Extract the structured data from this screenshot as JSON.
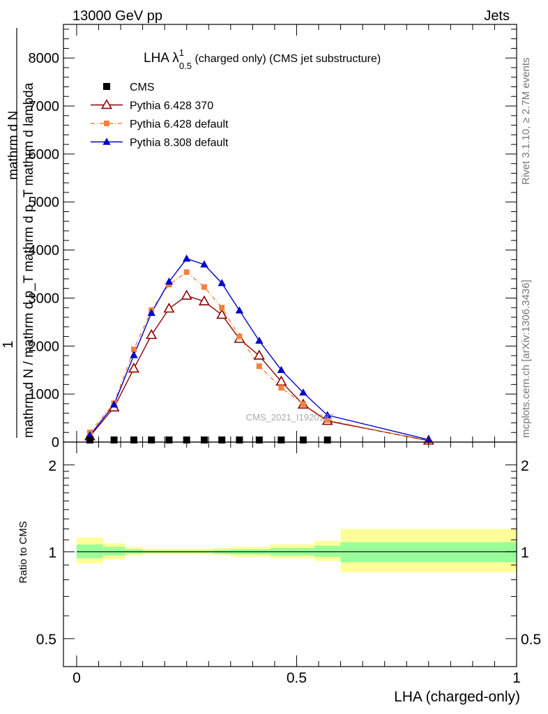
{
  "header": {
    "left": "13000 GeV pp",
    "right": "Jets"
  },
  "side_labels": {
    "rivet": "Rivet 3.1.10, ≥ 2.7M events",
    "mcplots": "mcplots.cern.ch [arXiv:1306.3436]"
  },
  "title": {
    "main": "LHA λ",
    "sup": "1",
    "sub": "0.5",
    "rest": " (charged only) (CMS jet substructure)"
  },
  "watermark": "CMS_2021_I1920187",
  "colors": {
    "cms": "#000000",
    "p6_370": "#8b0000",
    "p6_default": "#f4803a",
    "p8_default": "#0000cc",
    "band_inner": "#99ff99",
    "band_outer": "#ffff99"
  },
  "chart_data": [
    {
      "type": "line",
      "panel": "main",
      "xlabel": "LHA (charged-only)",
      "ylabel_top": "1",
      "ylabel_numerator": "mathrm d N",
      "ylabel_denominator": "mathrm d N / mathrm d p_T mathrm d p_T mathrm d lambda",
      "xlim": [
        -0.03,
        1.0
      ],
      "ylim": [
        0,
        8700
      ],
      "y_ticks": [
        0,
        1000,
        2000,
        3000,
        4000,
        5000,
        6000,
        7000,
        8000
      ],
      "y_tick_labels": [
        "0",
        "1000",
        "2000",
        "3000",
        "4000",
        "5000",
        "6000",
        "7000",
        "8000"
      ],
      "legend_position": "top-left",
      "series": [
        {
          "name": "CMS",
          "style": "square",
          "x": [
            0.03,
            0.085,
            0.13,
            0.17,
            0.21,
            0.25,
            0.29,
            0.33,
            0.37,
            0.415,
            0.465,
            0.515,
            0.57
          ],
          "y": [
            5,
            5,
            5,
            5,
            5,
            5,
            5,
            5,
            5,
            5,
            5,
            5,
            5
          ]
        },
        {
          "name": "Pythia 6.428 370",
          "style": "open-triangle",
          "x": [
            0.03,
            0.085,
            0.13,
            0.17,
            0.21,
            0.25,
            0.29,
            0.33,
            0.37,
            0.415,
            0.465,
            0.515,
            0.57,
            0.8
          ],
          "y": [
            120,
            720,
            1530,
            2230,
            2780,
            3050,
            2930,
            2650,
            2150,
            1800,
            1260,
            780,
            440,
            30
          ]
        },
        {
          "name": "Pythia 6.428 default",
          "style": "small-square-dashdot",
          "x": [
            0.03,
            0.085,
            0.13,
            0.17,
            0.21,
            0.25,
            0.29,
            0.33,
            0.37,
            0.415,
            0.465,
            0.515,
            0.57,
            0.8
          ],
          "y": [
            200,
            810,
            1930,
            2750,
            3280,
            3540,
            3230,
            2800,
            2200,
            1580,
            1130,
            790,
            460,
            20
          ]
        },
        {
          "name": "Pythia 8.308 default",
          "style": "filled-triangle",
          "x": [
            0.03,
            0.085,
            0.13,
            0.17,
            0.21,
            0.25,
            0.29,
            0.33,
            0.37,
            0.415,
            0.465,
            0.515,
            0.57,
            0.8
          ],
          "y": [
            140,
            780,
            1810,
            2690,
            3340,
            3820,
            3700,
            3310,
            2740,
            2110,
            1500,
            1030,
            560,
            50
          ]
        }
      ]
    },
    {
      "type": "line",
      "panel": "ratio",
      "xlabel": "LHA (charged-only)",
      "ylabel": "Ratio to CMS",
      "xlim": [
        -0.03,
        1.0
      ],
      "ylim": [
        0.4,
        2.4
      ],
      "y_scale": "log",
      "x_ticks": [
        0,
        0.5,
        1
      ],
      "x_tick_labels": [
        "0",
        "0.5",
        "1"
      ],
      "y_ticks": [
        0.5,
        1,
        2
      ],
      "y_tick_labels": [
        "0.5",
        "1",
        "2"
      ],
      "reference_line": 1,
      "bands": [
        {
          "x0": 0.0,
          "x1": 0.06,
          "inner": [
            0.95,
            1.06
          ],
          "outer": [
            0.91,
            1.12
          ]
        },
        {
          "x0": 0.06,
          "x1": 0.11,
          "inner": [
            0.97,
            1.04
          ],
          "outer": [
            0.94,
            1.07
          ]
        },
        {
          "x0": 0.11,
          "x1": 0.15,
          "inner": [
            0.985,
            1.02
          ],
          "outer": [
            0.97,
            1.04
          ]
        },
        {
          "x0": 0.15,
          "x1": 0.19,
          "inner": [
            0.99,
            1.01
          ],
          "outer": [
            0.98,
            1.025
          ]
        },
        {
          "x0": 0.19,
          "x1": 0.23,
          "inner": [
            0.99,
            1.01
          ],
          "outer": [
            0.98,
            1.025
          ]
        },
        {
          "x0": 0.23,
          "x1": 0.27,
          "inner": [
            0.99,
            1.01
          ],
          "outer": [
            0.98,
            1.025
          ]
        },
        {
          "x0": 0.27,
          "x1": 0.31,
          "inner": [
            0.99,
            1.01
          ],
          "outer": [
            0.98,
            1.025
          ]
        },
        {
          "x0": 0.31,
          "x1": 0.35,
          "inner": [
            0.985,
            1.015
          ],
          "outer": [
            0.975,
            1.03
          ]
        },
        {
          "x0": 0.35,
          "x1": 0.39,
          "inner": [
            0.98,
            1.02
          ],
          "outer": [
            0.96,
            1.04
          ]
        },
        {
          "x0": 0.39,
          "x1": 0.44,
          "inner": [
            0.98,
            1.02
          ],
          "outer": [
            0.96,
            1.04
          ]
        },
        {
          "x0": 0.44,
          "x1": 0.49,
          "inner": [
            0.97,
            1.03
          ],
          "outer": [
            0.95,
            1.06
          ]
        },
        {
          "x0": 0.49,
          "x1": 0.54,
          "inner": [
            0.97,
            1.03
          ],
          "outer": [
            0.95,
            1.06
          ]
        },
        {
          "x0": 0.54,
          "x1": 0.6,
          "inner": [
            0.96,
            1.05
          ],
          "outer": [
            0.93,
            1.09
          ]
        },
        {
          "x0": 0.6,
          "x1": 1.0,
          "inner": [
            0.92,
            1.08
          ],
          "outer": [
            0.85,
            1.2
          ]
        }
      ]
    }
  ]
}
